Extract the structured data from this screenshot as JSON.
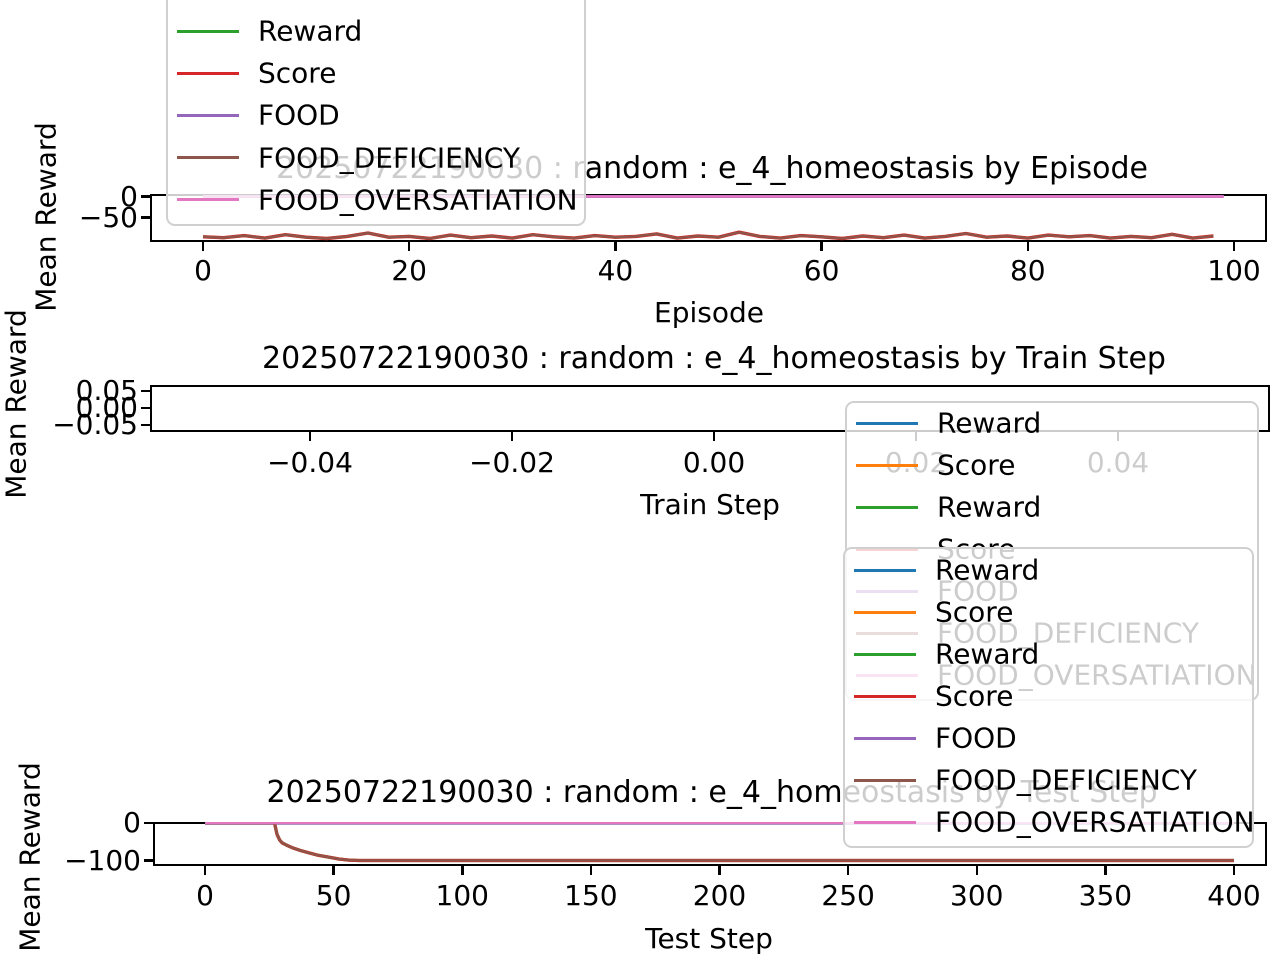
{
  "page": {
    "background": "#ffffff"
  },
  "colors": {
    "blue": "#1f77b4",
    "orange": "#ff7f0e",
    "green": "#2ca02c",
    "red": "#d62728",
    "purple": "#9467bd",
    "brown": "#8c564b",
    "pink": "#e377c2",
    "spine": "#000000",
    "legend_border": "#d0d0d0"
  },
  "chart_data": [
    {
      "type": "line",
      "title": "20250722190030 : random : e_4_homeostasis by Episode",
      "xlabel": "Episode",
      "ylabel": "Mean Reward",
      "xlim": [
        -5,
        105
      ],
      "ylim": [
        -116,
        6
      ],
      "grid": false,
      "legend_position": "upper-left-outside",
      "xticks": {
        "values": [
          0,
          20,
          40,
          60,
          80,
          100
        ],
        "labels": [
          "0",
          "20",
          "40",
          "60",
          "80",
          "100"
        ]
      },
      "yticks": {
        "values": [
          0,
          -50
        ],
        "labels": [
          "0",
          "−50"
        ]
      },
      "legend": [
        {
          "label": "Reward",
          "color": "green"
        },
        {
          "label": "Score",
          "color": "red"
        },
        {
          "label": "FOOD",
          "color": "purple"
        },
        {
          "label": "FOOD_DEFICIENCY",
          "color": "brown"
        },
        {
          "label": "FOOD_OVERSATIATION",
          "color": "pink"
        }
      ],
      "series": [
        {
          "name": "Reward",
          "color": "green",
          "x_step": 2,
          "values": [
            -96,
            -98,
            -93,
            -99,
            -91,
            -97,
            -100,
            -95,
            -87,
            -97,
            -95,
            -100,
            -92,
            -98,
            -94,
            -99,
            -91,
            -96,
            -99,
            -93,
            -97,
            -95,
            -89,
            -99,
            -94,
            -97,
            -85,
            -95,
            -99,
            -93,
            -96,
            -100,
            -94,
            -98,
            -92,
            -99,
            -95,
            -88,
            -97,
            -94,
            -99,
            -92,
            -96,
            -93,
            -99,
            -95,
            -98,
            -90,
            -99,
            -94
          ]
        },
        {
          "name": "Score",
          "color": "red",
          "x_step": 2,
          "values": [
            -96,
            -98,
            -93,
            -99,
            -91,
            -97,
            -100,
            -95,
            -87,
            -97,
            -95,
            -100,
            -92,
            -98,
            -94,
            -99,
            -91,
            -96,
            -99,
            -93,
            -97,
            -95,
            -89,
            -99,
            -94,
            -97,
            -85,
            -95,
            -99,
            -93,
            -96,
            -100,
            -94,
            -98,
            -92,
            -99,
            -95,
            -88,
            -97,
            -94,
            -99,
            -92,
            -96,
            -93,
            -99,
            -95,
            -98,
            -90,
            -99,
            -94
          ]
        },
        {
          "name": "FOOD",
          "color": "purple",
          "constant": 0,
          "x_range": [
            0,
            99
          ]
        },
        {
          "name": "FOOD_DEFICIENCY",
          "color": "brown",
          "x_step": 2,
          "values": [
            -96,
            -98,
            -93,
            -99,
            -91,
            -97,
            -100,
            -95,
            -87,
            -97,
            -95,
            -100,
            -92,
            -98,
            -94,
            -99,
            -91,
            -96,
            -99,
            -93,
            -97,
            -95,
            -89,
            -99,
            -94,
            -97,
            -85,
            -95,
            -99,
            -93,
            -96,
            -100,
            -94,
            -98,
            -92,
            -99,
            -95,
            -88,
            -97,
            -94,
            -99,
            -92,
            -96,
            -93,
            -99,
            -95,
            -98,
            -90,
            -99,
            -94
          ]
        },
        {
          "name": "FOOD_OVERSATIATION",
          "color": "pink",
          "constant": 0,
          "x_range": [
            0,
            99
          ]
        }
      ]
    },
    {
      "type": "line",
      "title": "20250722190030 : random : e_4_homeostasis by Train Step",
      "xlabel": "Train Step",
      "ylabel": "Mean Reward",
      "xlim": [
        -0.056,
        0.056
      ],
      "ylim": [
        -0.069,
        0.069
      ],
      "grid": false,
      "legend_position": "right",
      "xticks": {
        "values": [
          -0.04,
          -0.02,
          0.0,
          0.02,
          0.04
        ],
        "labels": [
          "−0.04",
          "−0.02",
          "0.00",
          "0.02",
          "0.04"
        ]
      },
      "yticks": {
        "values": [
          0.05,
          0.0,
          -0.05
        ],
        "labels": [
          "0.05",
          "0.00",
          "−0.05"
        ]
      },
      "legend": [
        {
          "label": "Reward",
          "color": "blue"
        },
        {
          "label": "Score",
          "color": "orange"
        },
        {
          "label": "Reward",
          "color": "green"
        },
        {
          "label": "Score",
          "color": "red"
        },
        {
          "label": "FOOD",
          "color": "purple"
        },
        {
          "label": "FOOD_DEFICIENCY",
          "color": "brown"
        },
        {
          "label": "FOOD_OVERSATIATION",
          "color": "pink"
        }
      ],
      "series": []
    },
    {
      "type": "line",
      "title": "20250722190030 : random : e_4_homeostasis by Test Step",
      "xlabel": "Test Step",
      "ylabel": "Mean Reward",
      "xlim": [
        -20,
        420
      ],
      "ylim": [
        -108,
        6
      ],
      "grid": false,
      "legend_position": "upper-right",
      "xticks": {
        "values": [
          0,
          50,
          100,
          150,
          200,
          250,
          300,
          350,
          400
        ],
        "labels": [
          "0",
          "50",
          "100",
          "150",
          "200",
          "250",
          "300",
          "350",
          "400"
        ]
      },
      "yticks": {
        "values": [
          0,
          -100
        ],
        "labels": [
          "0",
          "−100"
        ]
      },
      "legend": [
        {
          "label": "Reward",
          "color": "blue"
        },
        {
          "label": "Score",
          "color": "orange"
        },
        {
          "label": "Reward",
          "color": "green"
        },
        {
          "label": "Score",
          "color": "red"
        },
        {
          "label": "FOOD",
          "color": "purple"
        },
        {
          "label": "FOOD_DEFICIENCY",
          "color": "brown"
        },
        {
          "label": "FOOD_OVERSATIATION",
          "color": "pink"
        }
      ],
      "series": [
        {
          "name": "Reward",
          "color": "blue",
          "constant": 0,
          "x_range": [
            0,
            400
          ]
        },
        {
          "name": "Score",
          "color": "orange",
          "constant": 0,
          "x_range": [
            0,
            400
          ]
        },
        {
          "name": "Reward",
          "color": "green",
          "x": [
            0,
            27,
            28,
            29,
            30,
            32,
            34,
            37,
            40,
            44,
            48,
            52,
            56,
            60,
            70,
            100,
            200,
            300,
            400
          ],
          "y": [
            0,
            0,
            -30,
            -45,
            -53,
            -60,
            -66,
            -73,
            -79,
            -86,
            -91,
            -96,
            -99,
            -100,
            -100,
            -100,
            -100,
            -100,
            -100
          ]
        },
        {
          "name": "Score",
          "color": "red",
          "x": [
            0,
            27,
            28,
            29,
            30,
            32,
            34,
            37,
            40,
            44,
            48,
            52,
            56,
            60,
            70,
            100,
            200,
            300,
            400
          ],
          "y": [
            0,
            0,
            -30,
            -45,
            -53,
            -60,
            -66,
            -73,
            -79,
            -86,
            -91,
            -96,
            -99,
            -100,
            -100,
            -100,
            -100,
            -100,
            -100
          ]
        },
        {
          "name": "FOOD",
          "color": "purple",
          "constant": 0,
          "x_range": [
            0,
            400
          ]
        },
        {
          "name": "FOOD_DEFICIENCY",
          "color": "brown",
          "x": [
            0,
            27,
            28,
            29,
            30,
            32,
            34,
            37,
            40,
            44,
            48,
            52,
            56,
            60,
            70,
            100,
            200,
            300,
            400
          ],
          "y": [
            0,
            0,
            -30,
            -45,
            -53,
            -60,
            -66,
            -73,
            -79,
            -86,
            -91,
            -96,
            -99,
            -100,
            -100,
            -100,
            -100,
            -100,
            -100
          ]
        },
        {
          "name": "FOOD_OVERSATIATION",
          "color": "pink",
          "constant": 0,
          "x_range": [
            0,
            400
          ]
        }
      ]
    }
  ]
}
